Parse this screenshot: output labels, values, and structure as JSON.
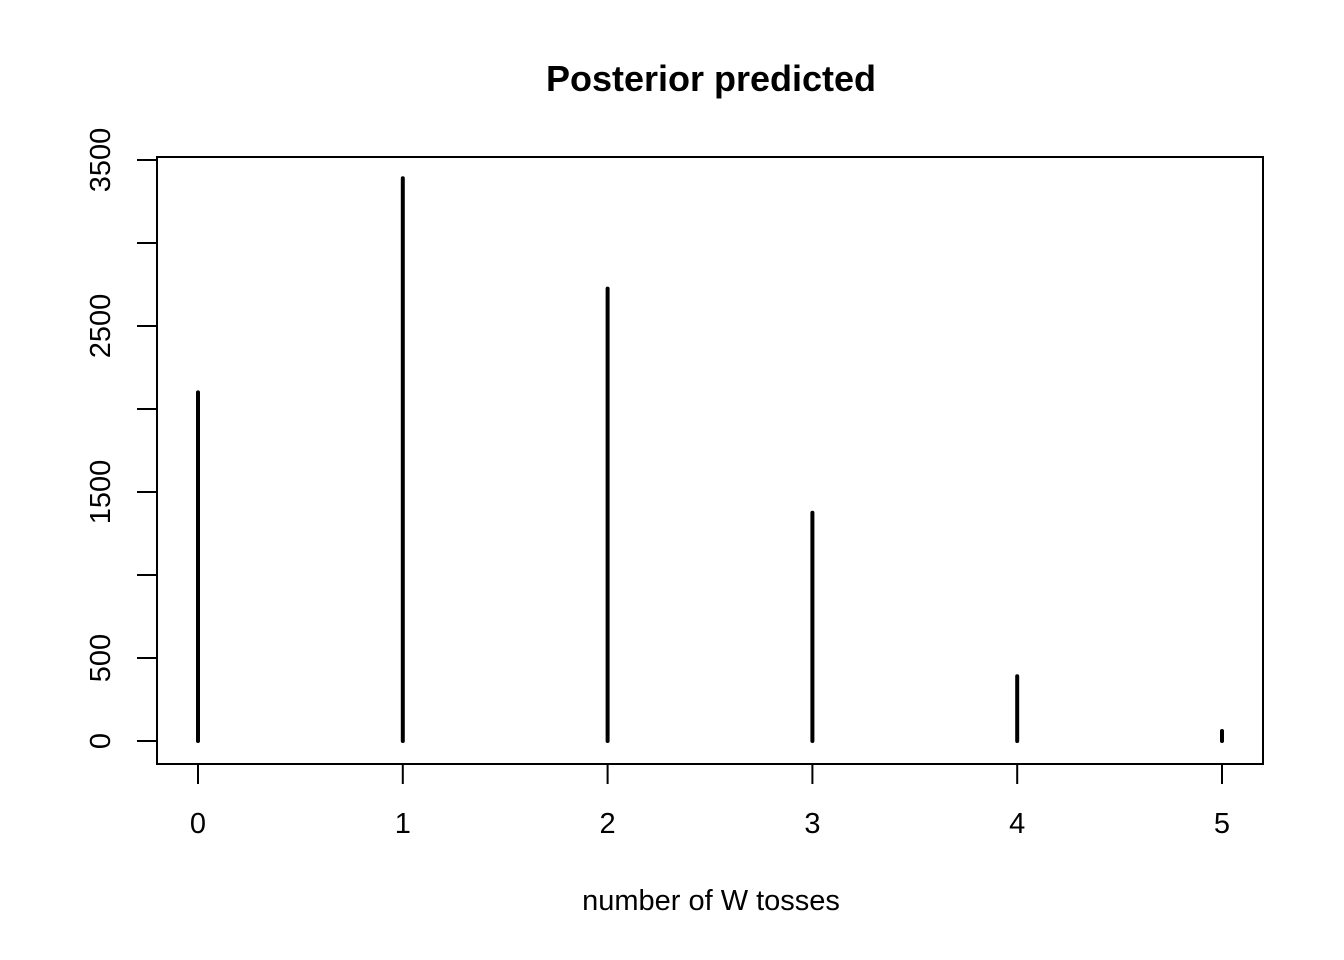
{
  "chart_data": {
    "type": "bar",
    "style": "histogram-lines",
    "title": "Posterior predicted",
    "xlabel": "number of W tosses",
    "ylabel": "",
    "x": [
      0,
      1,
      2,
      3,
      4,
      5
    ],
    "values": [
      2100,
      3390,
      2725,
      1375,
      390,
      60
    ],
    "xlim": [
      -0.2,
      5.2
    ],
    "ylim": [
      0,
      3500
    ],
    "x_ticks": [
      0,
      1,
      2,
      3,
      4,
      5
    ],
    "y_ticks": [
      0,
      500,
      1000,
      1500,
      2000,
      2500,
      3000,
      3500
    ],
    "y_tick_labels": [
      "0",
      "500",
      "",
      "1500",
      "",
      "2500",
      "",
      "3500"
    ],
    "grid": false,
    "bar_color": "#000000"
  }
}
